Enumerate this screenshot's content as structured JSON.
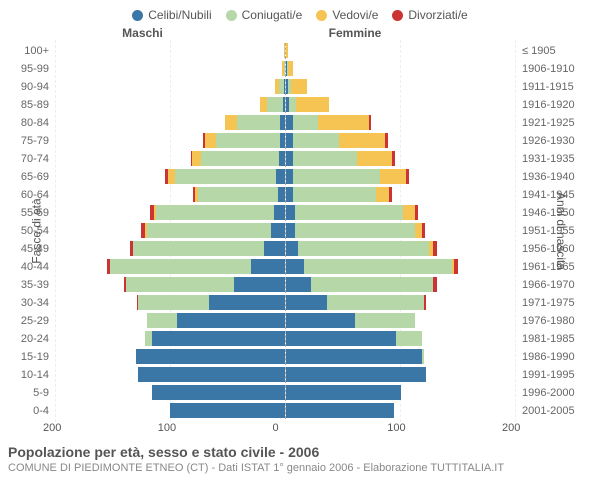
{
  "legend": [
    {
      "label": "Celibi/Nubili",
      "color": "#3b77a6"
    },
    {
      "label": "Coniugati/e",
      "color": "#b6d7a8"
    },
    {
      "label": "Vedovi/e",
      "color": "#f6c452"
    },
    {
      "label": "Divorziati/e",
      "color": "#cc3333"
    }
  ],
  "header_male": "Maschi",
  "header_female": "Femmine",
  "axis_left": "Fasce di età",
  "axis_right": "Anni di nascita",
  "x_ticks": [
    "200",
    "100",
    "0",
    "100",
    "200"
  ],
  "max_value": 200,
  "rows": [
    {
      "age": "100+",
      "birth": "≤ 1905",
      "m": {
        "cel": 0,
        "con": 0,
        "ved": 1,
        "div": 0
      },
      "f": {
        "cel": 0,
        "con": 0,
        "ved": 2,
        "div": 0
      }
    },
    {
      "age": "95-99",
      "birth": "1906-1910",
      "m": {
        "cel": 0,
        "con": 1,
        "ved": 2,
        "div": 0
      },
      "f": {
        "cel": 1,
        "con": 1,
        "ved": 4,
        "div": 0
      }
    },
    {
      "age": "90-94",
      "birth": "1911-1915",
      "m": {
        "cel": 1,
        "con": 4,
        "ved": 4,
        "div": 0
      },
      "f": {
        "cel": 2,
        "con": 2,
        "ved": 14,
        "div": 0
      }
    },
    {
      "age": "85-89",
      "birth": "1916-1920",
      "m": {
        "cel": 2,
        "con": 14,
        "ved": 6,
        "div": 0
      },
      "f": {
        "cel": 3,
        "con": 6,
        "ved": 28,
        "div": 0
      }
    },
    {
      "age": "80-84",
      "birth": "1921-1925",
      "m": {
        "cel": 4,
        "con": 38,
        "ved": 10,
        "div": 0
      },
      "f": {
        "cel": 6,
        "con": 22,
        "ved": 44,
        "div": 2
      }
    },
    {
      "age": "75-79",
      "birth": "1926-1930",
      "m": {
        "cel": 4,
        "con": 56,
        "ved": 10,
        "div": 1
      },
      "f": {
        "cel": 6,
        "con": 40,
        "ved": 40,
        "div": 3
      }
    },
    {
      "age": "70-74",
      "birth": "1931-1935",
      "m": {
        "cel": 5,
        "con": 68,
        "ved": 8,
        "div": 1
      },
      "f": {
        "cel": 6,
        "con": 56,
        "ved": 30,
        "div": 3
      }
    },
    {
      "age": "65-69",
      "birth": "1936-1940",
      "m": {
        "cel": 8,
        "con": 88,
        "ved": 6,
        "div": 2
      },
      "f": {
        "cel": 6,
        "con": 76,
        "ved": 22,
        "div": 3
      }
    },
    {
      "age": "60-64",
      "birth": "1941-1945",
      "m": {
        "cel": 6,
        "con": 70,
        "ved": 2,
        "div": 2
      },
      "f": {
        "cel": 6,
        "con": 72,
        "ved": 12,
        "div": 2
      }
    },
    {
      "age": "55-59",
      "birth": "1946-1950",
      "m": {
        "cel": 10,
        "con": 102,
        "ved": 2,
        "div": 3
      },
      "f": {
        "cel": 8,
        "con": 94,
        "ved": 10,
        "div": 3
      }
    },
    {
      "age": "50-54",
      "birth": "1951-1955",
      "m": {
        "cel": 12,
        "con": 108,
        "ved": 2,
        "div": 3
      },
      "f": {
        "cel": 8,
        "con": 104,
        "ved": 6,
        "div": 3
      }
    },
    {
      "age": "45-49",
      "birth": "1956-1960",
      "m": {
        "cel": 18,
        "con": 114,
        "ved": 0,
        "div": 3
      },
      "f": {
        "cel": 10,
        "con": 114,
        "ved": 4,
        "div": 3
      }
    },
    {
      "age": "40-44",
      "birth": "1961-1965",
      "m": {
        "cel": 30,
        "con": 122,
        "ved": 0,
        "div": 3
      },
      "f": {
        "cel": 16,
        "con": 128,
        "ved": 2,
        "div": 4
      }
    },
    {
      "age": "35-39",
      "birth": "1966-1970",
      "m": {
        "cel": 44,
        "con": 94,
        "ved": 0,
        "div": 2
      },
      "f": {
        "cel": 22,
        "con": 106,
        "ved": 0,
        "div": 3
      }
    },
    {
      "age": "30-34",
      "birth": "1971-1975",
      "m": {
        "cel": 66,
        "con": 62,
        "ved": 0,
        "div": 1
      },
      "f": {
        "cel": 36,
        "con": 84,
        "ved": 0,
        "div": 2
      }
    },
    {
      "age": "25-29",
      "birth": "1976-1980",
      "m": {
        "cel": 94,
        "con": 26,
        "ved": 0,
        "div": 0
      },
      "f": {
        "cel": 60,
        "con": 52,
        "ved": 0,
        "div": 0
      }
    },
    {
      "age": "20-24",
      "birth": "1981-1985",
      "m": {
        "cel": 116,
        "con": 6,
        "ved": 0,
        "div": 0
      },
      "f": {
        "cel": 96,
        "con": 22,
        "ved": 0,
        "div": 0
      }
    },
    {
      "age": "15-19",
      "birth": "1986-1990",
      "m": {
        "cel": 130,
        "con": 0,
        "ved": 0,
        "div": 0
      },
      "f": {
        "cel": 118,
        "con": 2,
        "ved": 0,
        "div": 0
      }
    },
    {
      "age": "10-14",
      "birth": "1991-1995",
      "m": {
        "cel": 128,
        "con": 0,
        "ved": 0,
        "div": 0
      },
      "f": {
        "cel": 122,
        "con": 0,
        "ved": 0,
        "div": 0
      }
    },
    {
      "age": "5-9",
      "birth": "1996-2000",
      "m": {
        "cel": 116,
        "con": 0,
        "ved": 0,
        "div": 0
      },
      "f": {
        "cel": 100,
        "con": 0,
        "ved": 0,
        "div": 0
      }
    },
    {
      "age": "0-4",
      "birth": "2001-2005",
      "m": {
        "cel": 100,
        "con": 0,
        "ved": 0,
        "div": 0
      },
      "f": {
        "cel": 94,
        "con": 0,
        "ved": 0,
        "div": 0
      }
    }
  ],
  "title": "Popolazione per età, sesso e stato civile - 2006",
  "subtitle": "COMUNE DI PIEDIMONTE ETNEO (CT) - Dati ISTAT 1° gennaio 2006 - Elaborazione TUTTITALIA.IT"
}
